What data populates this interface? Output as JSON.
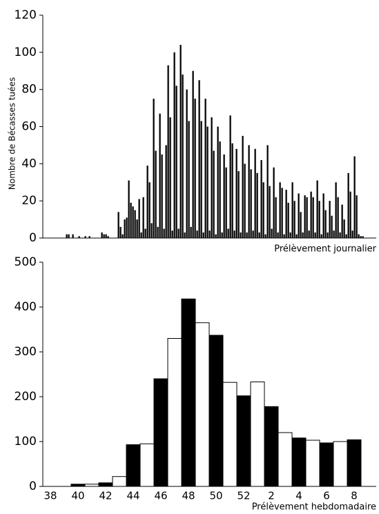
{
  "chart_data": [
    {
      "type": "bar",
      "ylabel": "Nombre de Bécasses tuées",
      "xlabel": "Prélèvement journalier",
      "values": [
        0,
        0,
        0,
        0,
        0,
        0,
        0,
        0,
        0,
        0,
        0,
        2,
        2,
        0,
        2,
        0,
        0,
        1,
        0,
        0,
        1,
        0,
        1,
        0,
        0,
        0,
        0,
        0,
        3,
        2,
        2,
        1,
        0,
        0,
        0,
        0,
        14,
        6,
        2,
        10,
        11,
        31,
        19,
        17,
        15,
        10,
        21,
        3,
        22,
        5,
        39,
        30,
        8,
        75,
        47,
        6,
        67,
        45,
        5,
        50,
        93,
        65,
        4,
        100,
        82,
        5,
        104,
        88,
        3,
        80,
        63,
        6,
        90,
        75,
        4,
        85,
        63,
        3,
        75,
        60,
        4,
        65,
        47,
        2,
        60,
        52,
        3,
        45,
        38,
        5,
        66,
        51,
        4,
        48,
        36,
        3,
        55,
        40,
        3,
        50,
        37,
        4,
        48,
        35,
        3,
        42,
        30,
        2,
        50,
        28,
        5,
        38,
        22,
        3,
        30,
        27,
        2,
        26,
        19,
        3,
        30,
        20,
        2,
        24,
        14,
        3,
        23,
        22,
        4,
        25,
        22,
        3,
        31,
        20,
        2,
        24,
        15,
        3,
        20,
        12,
        4,
        30,
        22,
        3,
        18,
        10,
        2,
        35,
        25,
        4,
        44,
        23,
        2,
        1,
        1,
        0,
        0,
        0,
        0,
        0,
        0
      ],
      "color": "#000000",
      "ylim": [
        0,
        120
      ],
      "yticks": [
        0,
        20,
        40,
        60,
        80,
        100,
        120
      ]
    },
    {
      "type": "bar",
      "xlabel": "Prélèvement hebdomadaire",
      "categories": [
        "38",
        null,
        "40",
        null,
        "42",
        null,
        "44",
        null,
        "46",
        null,
        "48",
        null,
        "50",
        null,
        "52",
        null,
        "2",
        null,
        "4",
        null,
        "6",
        null,
        "8"
      ],
      "values": [
        0,
        0,
        5,
        5,
        8,
        22,
        93,
        95,
        240,
        330,
        418,
        365,
        337,
        232,
        202,
        233,
        178,
        120,
        108,
        103,
        97,
        100,
        104
      ],
      "colors": [
        "#000000",
        "#ffffff",
        "#000000",
        "#ffffff",
        "#000000",
        "#ffffff",
        "#000000",
        "#ffffff",
        "#000000",
        "#ffffff",
        "#000000",
        "#ffffff",
        "#000000",
        "#ffffff",
        "#000000",
        "#ffffff",
        "#000000",
        "#ffffff",
        "#000000",
        "#ffffff",
        "#000000",
        "#ffffff",
        "#000000"
      ],
      "edgecolor": "#000000",
      "ylim": [
        0,
        500
      ],
      "yticks": [
        0,
        100,
        200,
        300,
        400,
        500
      ]
    }
  ]
}
